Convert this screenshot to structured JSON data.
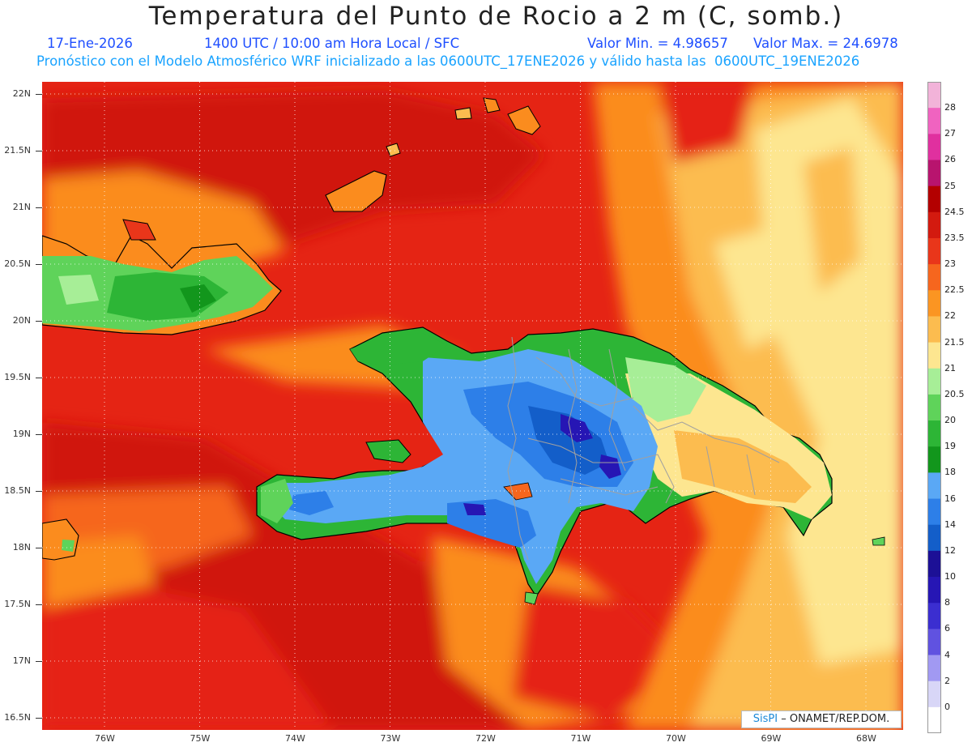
{
  "title": "Temperatura del Punto de Rocio a 2 m (C, somb.)",
  "subtitle": {
    "date": "17-Ene-2026",
    "time": "1400 UTC / 10:00 am Hora Local / SFC",
    "min": "Valor Min. = 4.98657",
    "max": "Valor Max. = 24.6978"
  },
  "model_info": "Pronóstico con el Modelo Atmosférico WRF inicializado a las 0600UTC_17ENE2026 y válido hasta las  0600UTC_19ENE2026",
  "lat_labels": [
    "22N",
    "21.5N",
    "21N",
    "20.5N",
    "20N",
    "19.5N",
    "19N",
    "18.5N",
    "18N",
    "17.5N",
    "17N",
    "16.5N"
  ],
  "lon_labels": [
    "76W",
    "75W",
    "74W",
    "73W",
    "72W",
    "71W",
    "70W",
    "69W",
    "68W"
  ],
  "colorbar": [
    {
      "label": "28",
      "color": "#f2b3d9"
    },
    {
      "label": "27",
      "color": "#f063c0"
    },
    {
      "label": "26",
      "color": "#e0309f"
    },
    {
      "label": "25",
      "color": "#b8146e"
    },
    {
      "label": "24.5",
      "color": "#b30000"
    },
    {
      "label": "23.5",
      "color": "#d31a0f"
    },
    {
      "label": "23",
      "color": "#e9361a"
    },
    {
      "label": "22.5",
      "color": "#f6661e"
    },
    {
      "label": "22",
      "color": "#fb9522"
    },
    {
      "label": "21.5",
      "color": "#fcbc4f"
    },
    {
      "label": "21",
      "color": "#fde690"
    },
    {
      "label": "20.5",
      "color": "#a7ee97"
    },
    {
      "label": "20",
      "color": "#5fd35a"
    },
    {
      "label": "19",
      "color": "#2db536"
    },
    {
      "label": "18",
      "color": "#12961c"
    },
    {
      "label": "16",
      "color": "#5aa8f5"
    },
    {
      "label": "14",
      "color": "#2d7fe8"
    },
    {
      "label": "12",
      "color": "#135ec9"
    },
    {
      "label": "10",
      "color": "#1c1096"
    },
    {
      "label": "8",
      "color": "#2616b4"
    },
    {
      "label": "6",
      "color": "#3b2ed0"
    },
    {
      "label": "4",
      "color": "#6052e0"
    },
    {
      "label": "2",
      "color": "#a199f2"
    },
    {
      "label": "0",
      "color": "#d8d6f7"
    },
    {
      "label": "",
      "color": "#ffffff"
    }
  ],
  "credit": {
    "brand": "SisPI",
    "text": " – ONAMET/REP.DOM."
  },
  "colors": {
    "sea": "#e52414",
    "sea_dark": "#d0160c",
    "orange": "#fb8c1e",
    "light": "#fcbc4f",
    "pale": "#fde690"
  }
}
